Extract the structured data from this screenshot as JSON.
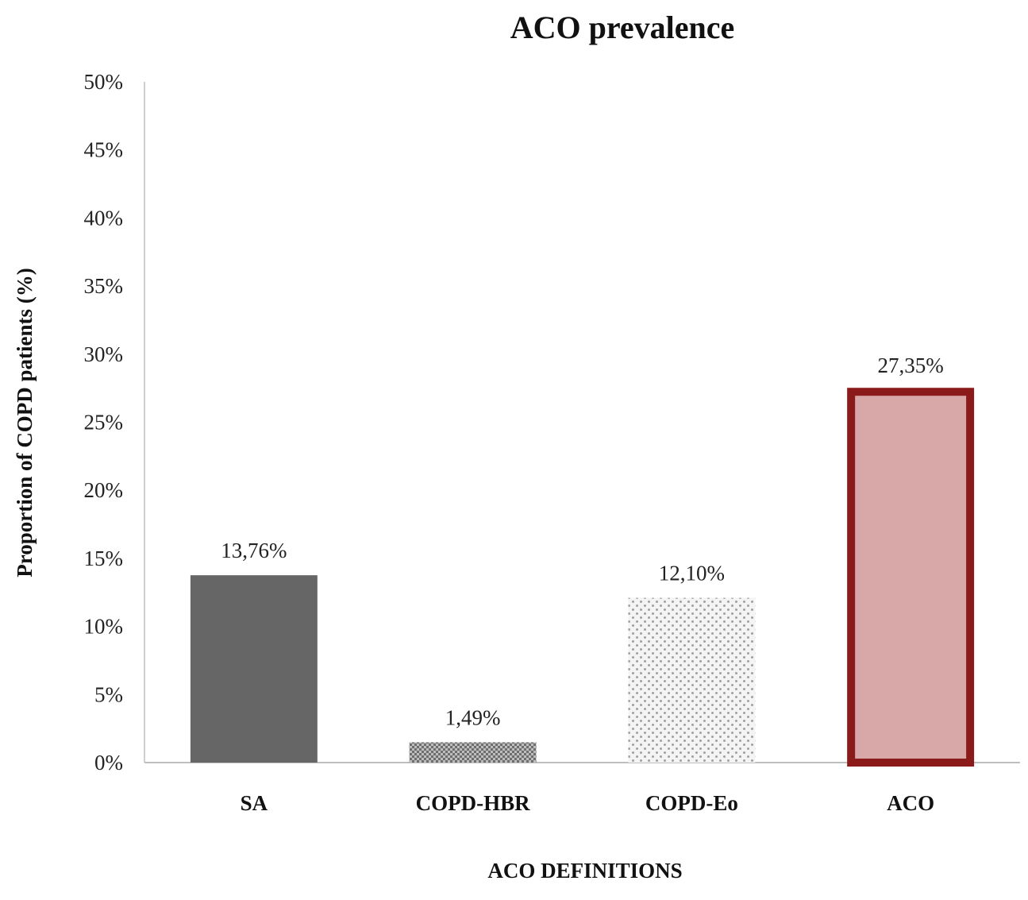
{
  "chart_data": {
    "type": "bar",
    "title": "ACO prevalence",
    "xlabel": "ACO DEFINITIONS",
    "ylabel": "Proportion of COPD patients  (%)",
    "categories": [
      "SA",
      "COPD-HBR",
      "COPD-Eo",
      "ACO"
    ],
    "values": [
      13.76,
      1.49,
      12.1,
      27.35
    ],
    "data_labels": [
      "13,76%",
      "1,49%",
      "12,10%",
      "27,35%"
    ],
    "ylim": [
      0,
      50
    ],
    "yticks": [
      0,
      5,
      10,
      15,
      20,
      25,
      30,
      35,
      40,
      45,
      50
    ],
    "ytick_labels": [
      "0%",
      "5%",
      "10%",
      "15%",
      "20%",
      "25%",
      "30%",
      "35%",
      "40%",
      "45%",
      "50%"
    ],
    "grid": false,
    "legend": "none",
    "colors": {
      "SA": "#666666",
      "COPD-HBR": "#8a8a8a",
      "COPD-Eo": "#c8c8c8",
      "ACO_fill": "#d8a8a8",
      "ACO_border": "#8b1a1a"
    }
  }
}
